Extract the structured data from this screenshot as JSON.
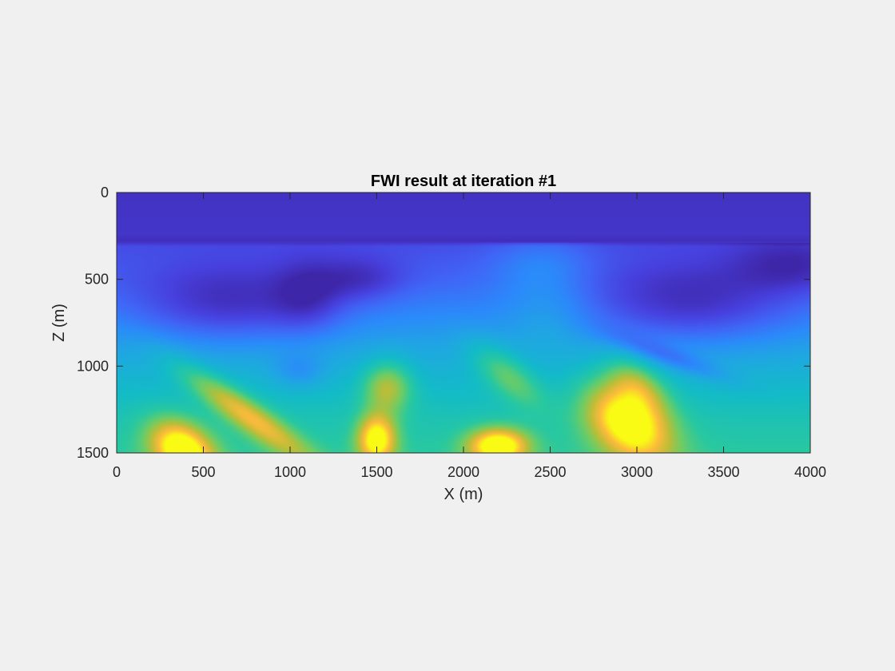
{
  "chart_data": {
    "type": "heatmap",
    "title": "FWI result at iteration #1",
    "xlabel": "X (m)",
    "ylabel": "Z (m)",
    "xlim": [
      0,
      4000
    ],
    "ylim": [
      0,
      1500
    ],
    "y_reversed": true,
    "colormap": "parula",
    "grid": false,
    "xticks": [
      0,
      500,
      1000,
      1500,
      2000,
      2500,
      3000,
      3500,
      4000
    ],
    "yticks": [
      0,
      500,
      1000,
      1500
    ],
    "xtick_labels": [
      "0",
      "500",
      "1000",
      "1500",
      "2000",
      "2500",
      "3000",
      "3500",
      "4000"
    ],
    "ytick_labels": [
      "0",
      "500",
      "1000",
      "1500"
    ],
    "field_description": "normalized velocity field: low layer above ~280 m, dipping structures, high-value bodies near the base",
    "base_profile": {
      "z": [
        0,
        240,
        280,
        310,
        500,
        700,
        900,
        1100,
        1300,
        1500
      ],
      "level": [
        0.05,
        0.06,
        0.03,
        0.14,
        0.2,
        0.3,
        0.4,
        0.48,
        0.55,
        0.6
      ]
    },
    "anomalies": [
      {
        "x": 380,
        "z": 1480,
        "sx": 200,
        "sz": 140,
        "level": 0.55,
        "rot": -35
      },
      {
        "x": 750,
        "z": 1280,
        "sx": 450,
        "sz": 90,
        "level": 0.35,
        "rot": -35
      },
      {
        "x": 1500,
        "z": 1420,
        "sx": 110,
        "sz": 140,
        "level": 0.5
      },
      {
        "x": 1560,
        "z": 1120,
        "sx": 140,
        "sz": 150,
        "level": 0.3
      },
      {
        "x": 2200,
        "z": 1460,
        "sx": 170,
        "sz": 100,
        "level": 0.55
      },
      {
        "x": 2250,
        "z": 1050,
        "sx": 250,
        "sz": 110,
        "level": 0.22,
        "rot": -40
      },
      {
        "x": 2950,
        "z": 1320,
        "sx": 280,
        "sz": 190,
        "level": 0.55,
        "rot": -40
      },
      {
        "x": 3000,
        "z": 1100,
        "sx": 200,
        "sz": 120,
        "level": 0.22,
        "rot": -40
      },
      {
        "x": 650,
        "z": 650,
        "sx": 550,
        "sz": 220,
        "level": -0.22
      },
      {
        "x": 1100,
        "z": 600,
        "sx": 200,
        "sz": 200,
        "level": -0.15
      },
      {
        "x": 1400,
        "z": 500,
        "sx": 250,
        "sz": 130,
        "level": -0.14
      },
      {
        "x": 1050,
        "z": 1030,
        "sx": 150,
        "sz": 100,
        "level": -0.12
      },
      {
        "x": 3300,
        "z": 650,
        "sx": 600,
        "sz": 230,
        "level": -0.22
      },
      {
        "x": 3900,
        "z": 420,
        "sx": 350,
        "sz": 150,
        "level": -0.15
      },
      {
        "x": 3200,
        "z": 950,
        "sx": 350,
        "sz": 60,
        "level": -0.14,
        "rot": -20
      },
      {
        "x": 2450,
        "z": 420,
        "sx": 300,
        "sz": 180,
        "level": 0.12
      },
      {
        "x": 2500,
        "z": 700,
        "sx": 250,
        "sz": 200,
        "level": 0.08
      }
    ]
  }
}
